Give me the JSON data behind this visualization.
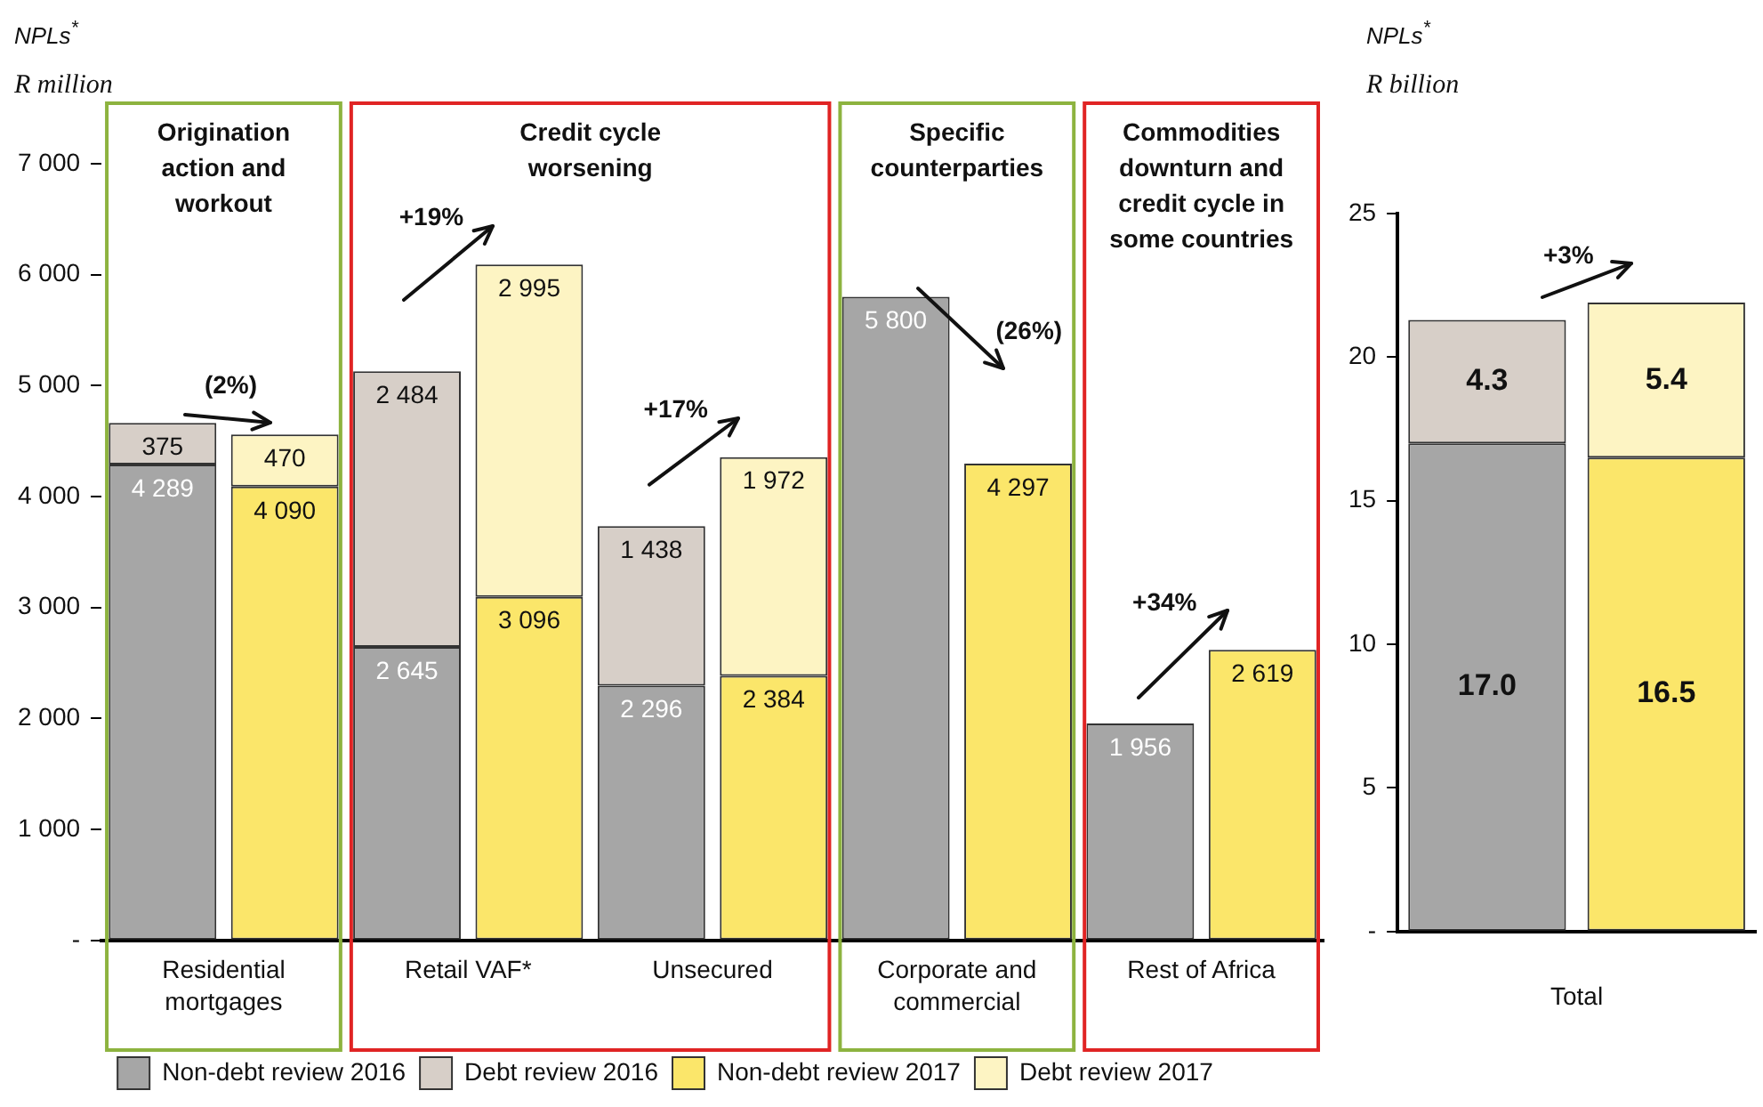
{
  "chart_data": [
    {
      "type": "bar",
      "stacked": true,
      "ylabel": "NPLs$^{*}$\nR million",
      "legend": "bottom",
      "categories": [
        "Residential mortgages",
        null,
        "Retail VAF*",
        null,
        "Unsecured",
        null,
        "Corporate and commercial",
        null,
        "Rest of Africa",
        null
      ],
      "ylim": [
        0,
        7000
      ],
      "yticks": [
        {
          "value": 0,
          "label": "-"
        },
        {
          "value": 1000,
          "label": "1 000"
        },
        {
          "value": 2000,
          "label": "2 000"
        },
        {
          "value": 3000,
          "label": "3 000"
        },
        {
          "value": 4000,
          "label": "4 000"
        },
        {
          "value": 5000,
          "label": "5 000"
        },
        {
          "value": 6000,
          "label": "6 000"
        },
        {
          "value": 7000,
          "label": "7 000"
        }
      ],
      "series": [
        {
          "name": "Non-debt review 2016",
          "color": "#a6a6a6",
          "values": [
            4289,
            null,
            2645,
            null,
            2296,
            null,
            5800,
            null,
            1956,
            null
          ],
          "value_labels": [
            "4 289",
            null,
            "2 645",
            null,
            "2 296",
            null,
            "5 800",
            null,
            "1 956",
            null
          ]
        },
        {
          "name": "Debt review 2016",
          "color": "#d7cfc8",
          "values": [
            375,
            null,
            2484,
            null,
            1438,
            null,
            null,
            null,
            null,
            null
          ],
          "value_labels": [
            "375",
            null,
            "2 484",
            null,
            "1 438",
            null,
            null,
            null,
            null,
            null
          ]
        },
        {
          "name": "Non-debt review 2017",
          "color": "#fbe66a",
          "values": [
            null,
            4090,
            null,
            3096,
            null,
            2384,
            null,
            4297,
            null,
            2619
          ],
          "value_labels": [
            null,
            "4 090",
            null,
            "3 096",
            null,
            "2 384",
            null,
            "4 297",
            null,
            "2 619"
          ]
        },
        {
          "name": "Debt review 2017",
          "color": "#fdf4c3",
          "values": [
            null,
            470,
            null,
            2995,
            null,
            1972,
            null,
            null,
            null,
            null
          ],
          "value_labels": [
            null,
            "470",
            null,
            "2 995",
            null,
            "1 972",
            null,
            null,
            null,
            null
          ]
        }
      ],
      "annotations": [
        "Origination action and workout",
        "Credit cycle worsening",
        "Specific counterparties",
        "Commodities downturn and credit cycle in some countries",
        "(2%)",
        "+19%",
        "+17%",
        "(26%)",
        "+34%"
      ]
    },
    {
      "type": "bar",
      "stacked": true,
      "ylabel": "NPLs$^{*}$\nR billion",
      "xlabel": "Total",
      "categories": [
        null,
        null
      ],
      "ylim": [
        0,
        25
      ],
      "yticks": [
        {
          "value": 0,
          "label": "-"
        },
        5,
        10,
        15,
        20,
        25
      ],
      "series": [
        {
          "color": "#a6a6a6",
          "values": [
            17.0,
            null
          ],
          "value_labels": [
            "17.0",
            null
          ]
        },
        {
          "color": "#d7cfc8",
          "values": [
            4.3,
            null
          ],
          "value_labels": [
            "4.3",
            null
          ]
        },
        {
          "color": "#fbe66a",
          "values": [
            null,
            16.5
          ],
          "value_labels": [
            null,
            "16.5"
          ]
        },
        {
          "color": "#fdf4c3",
          "values": [
            null,
            5.4
          ],
          "value_labels": [
            null,
            "5.4"
          ]
        }
      ],
      "annotations": [
        "+3%"
      ]
    }
  ]
}
